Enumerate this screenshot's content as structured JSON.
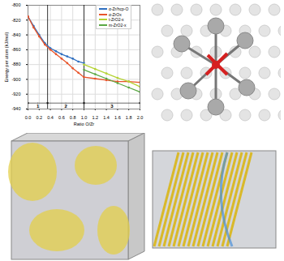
{
  "chart_data": {
    "type": "line",
    "xlabel": "Ratio O/Zr",
    "ylabel": "Energy per atom (kJ/mol)",
    "x": [
      0,
      0.1,
      0.2,
      0.3,
      0.4,
      0.5,
      0.6,
      0.7,
      0.8,
      0.9,
      1.0,
      1.2,
      1.4,
      1.6,
      1.8,
      2.0
    ],
    "series": [
      {
        "name": "α-Zr/hcp-O",
        "color": "#2f6fc0",
        "marker": "circle",
        "values": [
          -815,
          -828,
          -840,
          -851,
          -858,
          -862,
          -866,
          -869,
          -872,
          -876,
          -878,
          null,
          null,
          null,
          null,
          null
        ]
      },
      {
        "name": "α-ZrOx",
        "color": "#e8542a",
        "marker": "circle",
        "values": [
          -815,
          -830,
          -842,
          -853,
          -860,
          -866,
          -872,
          -878,
          -885,
          -891,
          -897,
          -899,
          -901,
          -903,
          -903,
          -904
        ]
      },
      {
        "name": "t-ZrO2-x",
        "color": "#b5d334",
        "marker": "circle",
        "values": [
          null,
          null,
          null,
          null,
          null,
          null,
          null,
          null,
          null,
          null,
          -880,
          -886,
          -892,
          -898,
          -903,
          -910
        ]
      },
      {
        "name": "m-ZrO2-x",
        "color": "#5aa843",
        "marker": "circle",
        "values": [
          null,
          null,
          null,
          null,
          null,
          null,
          null,
          null,
          null,
          null,
          -887,
          -893,
          -899,
          -905,
          -911,
          -917
        ]
      }
    ],
    "xlim": [
      0,
      2
    ],
    "xticks": [
      {
        "value": 0,
        "label": "0.0"
      },
      {
        "value": 0.2,
        "label": "0.2"
      },
      {
        "value": 0.4,
        "label": "0.4"
      },
      {
        "value": 0.6,
        "label": "0.6"
      },
      {
        "value": 0.8,
        "label": "0.8"
      },
      {
        "value": 1,
        "label": "1.0"
      },
      {
        "value": 1.2,
        "label": "1.2"
      },
      {
        "value": 1.4,
        "label": "1.4"
      },
      {
        "value": 1.6,
        "label": "1.6"
      },
      {
        "value": 1.8,
        "label": "1.8"
      },
      {
        "value": 2,
        "label": "2.0"
      }
    ],
    "ylim": [
      -940,
      -800
    ],
    "yticks": [
      -940,
      -920,
      -900,
      -880,
      -860,
      -840,
      -820,
      -800
    ],
    "grid": true,
    "legend": "top-right",
    "vlines": [
      0.35,
      1.0
    ],
    "regions": [
      {
        "label": "1",
        "from": 0,
        "to": 0.35,
        "y": -932
      },
      {
        "label": "2",
        "from": 0.35,
        "to": 1.0,
        "y": -932
      },
      {
        "label": "3",
        "from": 1.0,
        "to": 2.0,
        "y": -932
      }
    ]
  }
}
